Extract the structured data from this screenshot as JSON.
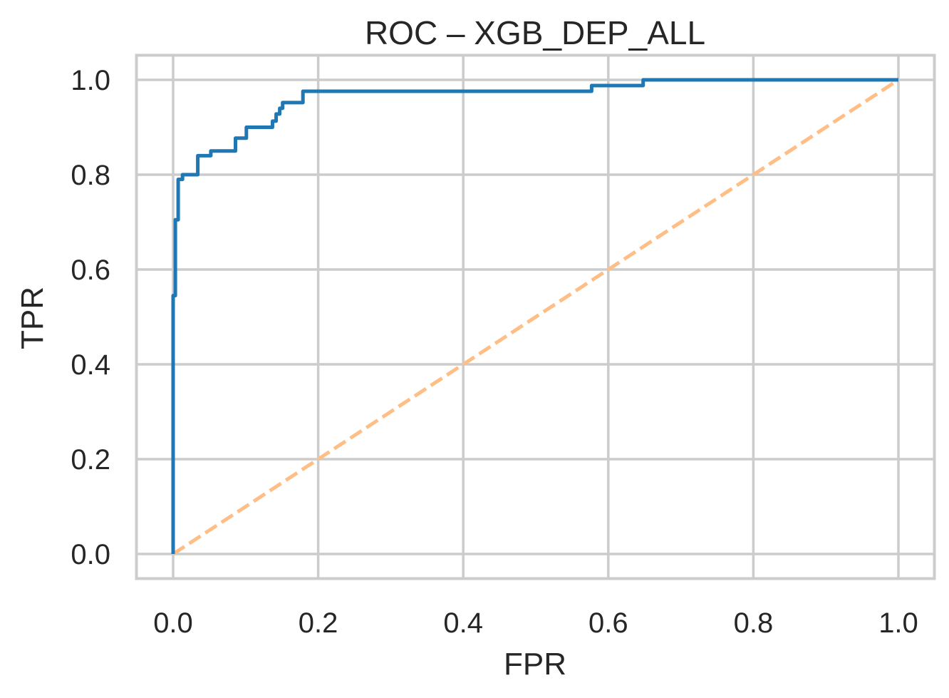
{
  "chart_data": {
    "type": "line",
    "title": "ROC – XGB_DEP_ALL",
    "xlabel": "FPR",
    "ylabel": "TPR",
    "xlim": [
      -0.05,
      1.05
    ],
    "ylim": [
      -0.05,
      1.05
    ],
    "grid": true,
    "legend": null,
    "x_ticks": [
      "0.0",
      "0.2",
      "0.4",
      "0.6",
      "0.8",
      "1.0"
    ],
    "y_ticks": [
      "0.0",
      "0.2",
      "0.4",
      "0.6",
      "0.8",
      "1.0"
    ],
    "series": [
      {
        "name": "ROC curve",
        "style": "solid-step",
        "color": "#1f77b4",
        "x": [
          0.0,
          0.0,
          0.003,
          0.003,
          0.007,
          0.007,
          0.013,
          0.013,
          0.034,
          0.034,
          0.052,
          0.052,
          0.086,
          0.086,
          0.101,
          0.101,
          0.137,
          0.137,
          0.142,
          0.142,
          0.147,
          0.147,
          0.151,
          0.151,
          0.179,
          0.179,
          0.577,
          0.577,
          0.648,
          0.648,
          1.0
        ],
        "y": [
          0.0,
          0.545,
          0.545,
          0.705,
          0.705,
          0.79,
          0.79,
          0.8,
          0.8,
          0.84,
          0.84,
          0.85,
          0.85,
          0.877,
          0.877,
          0.9,
          0.9,
          0.913,
          0.913,
          0.928,
          0.928,
          0.94,
          0.94,
          0.952,
          0.952,
          0.976,
          0.976,
          0.988,
          0.988,
          1.0,
          1.0
        ]
      },
      {
        "name": "Chance",
        "style": "dashed",
        "color": "#ffbe86",
        "x": [
          0.0,
          1.0
        ],
        "y": [
          0.0,
          1.0
        ]
      }
    ]
  },
  "colors": {
    "grid": "#cccccc",
    "frame": "#cccccc",
    "text": "#262626"
  }
}
